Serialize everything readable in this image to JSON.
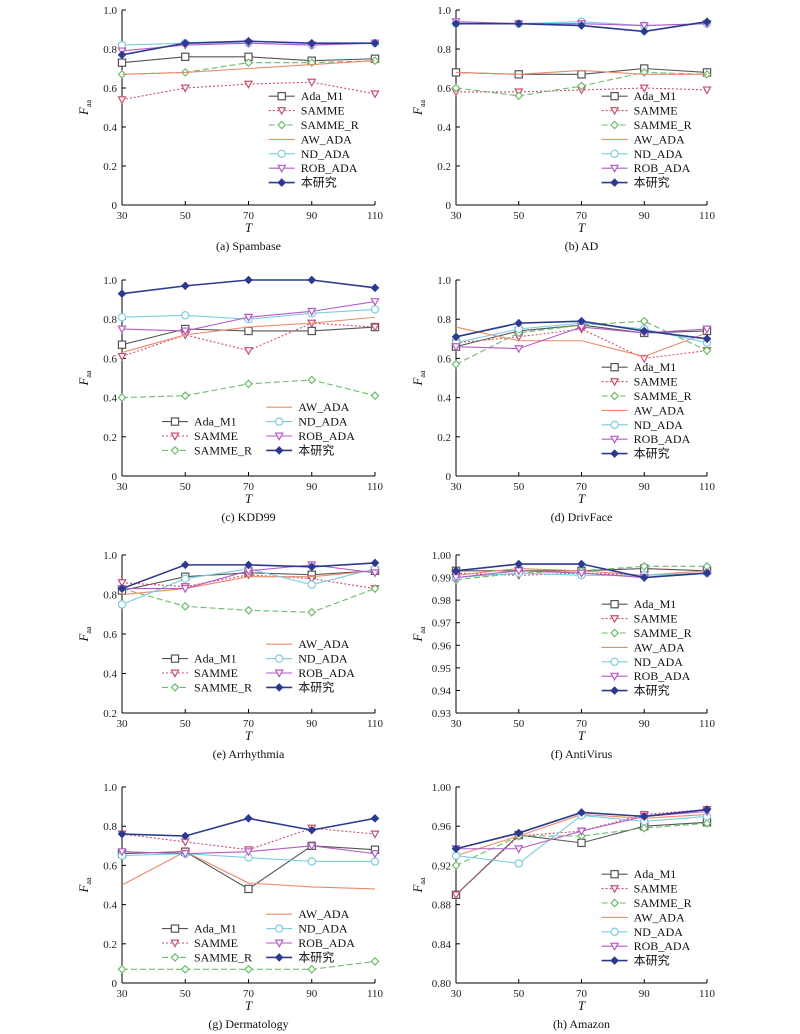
{
  "styles": {
    "Ada_M1": {
      "color": "#555555",
      "marker": "square",
      "dash": ""
    },
    "SAMME": {
      "color": "#c8506e",
      "marker": "tri-down",
      "dash": "2,2"
    },
    "SAMME_R": {
      "color": "#6dbb6d",
      "marker": "diamond",
      "dash": "6,3"
    },
    "AW_ADA": {
      "color": "#ee8a6a",
      "marker": "none",
      "dash": ""
    },
    "ND_ADA": {
      "color": "#7ecbe0",
      "marker": "circle",
      "dash": ""
    },
    "ROB_ADA": {
      "color": "#b55bc6",
      "marker": "tri-down",
      "dash": ""
    },
    "本研究": {
      "color": "#2b3a8f",
      "marker": "diamond-filled",
      "dash": ""
    }
  },
  "chart_data": [
    {
      "type": "line",
      "caption": "(a) Spambase",
      "legend": "right",
      "xlabel": "T",
      "ylabel": "F",
      "ylabel_sub": "aa",
      "x": [
        30,
        50,
        70,
        90,
        110
      ],
      "ylim": [
        0,
        1.0
      ],
      "yticks": [
        0,
        0.2,
        0.4,
        0.6,
        0.8,
        1.0
      ],
      "ytick_labels": [
        "0",
        "0.2",
        "0.4",
        "0.6",
        "0.8",
        "1.0"
      ],
      "series": [
        {
          "name": "Ada_M1",
          "values": [
            0.73,
            0.76,
            0.76,
            0.74,
            0.75
          ]
        },
        {
          "name": "SAMME",
          "values": [
            0.54,
            0.6,
            0.62,
            0.63,
            0.57
          ]
        },
        {
          "name": "SAMME_R",
          "values": [
            0.67,
            0.68,
            0.73,
            0.73,
            0.74
          ]
        },
        {
          "name": "AW_ADA",
          "values": [
            0.67,
            0.68,
            0.7,
            0.72,
            0.74
          ]
        },
        {
          "name": "ND_ADA",
          "values": [
            0.82,
            0.83,
            0.83,
            0.82,
            0.83
          ]
        },
        {
          "name": "ROB_ADA",
          "values": [
            0.79,
            0.82,
            0.83,
            0.82,
            0.83
          ]
        },
        {
          "name": "本研究",
          "values": [
            0.77,
            0.83,
            0.84,
            0.83,
            0.83
          ]
        }
      ]
    },
    {
      "type": "line",
      "caption": "(b) AD",
      "legend": "right",
      "xlabel": "T",
      "ylabel": "F",
      "ylabel_sub": "aa",
      "x": [
        30,
        50,
        70,
        90,
        110
      ],
      "ylim": [
        0,
        1.0
      ],
      "yticks": [
        0,
        0.2,
        0.4,
        0.6,
        0.8,
        1.0
      ],
      "ytick_labels": [
        "0",
        "0.2",
        "0.4",
        "0.6",
        "0.8",
        "1.0"
      ],
      "series": [
        {
          "name": "Ada_M1",
          "values": [
            0.68,
            0.67,
            0.67,
            0.7,
            0.68
          ]
        },
        {
          "name": "SAMME",
          "values": [
            0.58,
            0.58,
            0.59,
            0.6,
            0.59
          ]
        },
        {
          "name": "SAMME_R",
          "values": [
            0.6,
            0.56,
            0.61,
            0.68,
            0.67
          ]
        },
        {
          "name": "AW_ADA",
          "values": [
            0.68,
            0.67,
            0.69,
            0.67,
            0.67
          ]
        },
        {
          "name": "ND_ADA",
          "values": [
            0.93,
            0.93,
            0.94,
            0.92,
            0.93
          ]
        },
        {
          "name": "ROB_ADA",
          "values": [
            0.94,
            0.93,
            0.93,
            0.92,
            0.93
          ]
        },
        {
          "name": "本研究",
          "values": [
            0.93,
            0.93,
            0.92,
            0.89,
            0.94
          ]
        }
      ]
    },
    {
      "type": "line",
      "caption": "(c) KDD99",
      "legend": "bottom-left-two-col",
      "xlabel": "T",
      "ylabel": "F",
      "ylabel_sub": "aa",
      "x": [
        30,
        50,
        70,
        90,
        110
      ],
      "ylim": [
        0,
        1.0
      ],
      "yticks": [
        0,
        0.2,
        0.4,
        0.6,
        0.8,
        1.0
      ],
      "ytick_labels": [
        "0",
        "0.2",
        "0.4",
        "0.6",
        "0.8",
        "1.0"
      ],
      "series": [
        {
          "name": "Ada_M1",
          "values": [
            0.67,
            0.75,
            0.74,
            0.74,
            0.76
          ]
        },
        {
          "name": "SAMME",
          "values": [
            0.61,
            0.72,
            0.64,
            0.78,
            0.76
          ]
        },
        {
          "name": "SAMME_R",
          "values": [
            0.4,
            0.41,
            0.47,
            0.49,
            0.41
          ]
        },
        {
          "name": "AW_ADA",
          "values": [
            0.63,
            0.72,
            0.76,
            0.78,
            0.81
          ]
        },
        {
          "name": "ND_ADA",
          "values": [
            0.81,
            0.82,
            0.8,
            0.83,
            0.85
          ]
        },
        {
          "name": "ROB_ADA",
          "values": [
            0.75,
            0.74,
            0.81,
            0.84,
            0.89
          ]
        },
        {
          "name": "本研究",
          "values": [
            0.93,
            0.97,
            1.0,
            1.0,
            0.96
          ]
        }
      ]
    },
    {
      "type": "line",
      "caption": "(d) DrivFace",
      "legend": "right",
      "xlabel": "T",
      "ylabel": "F",
      "ylabel_sub": "aa",
      "x": [
        30,
        50,
        70,
        90,
        110
      ],
      "ylim": [
        0,
        1.0
      ],
      "yticks": [
        0,
        0.2,
        0.4,
        0.6,
        0.8,
        1.0
      ],
      "ytick_labels": [
        "0",
        "0.2",
        "0.4",
        "0.6",
        "0.8",
        "1.0"
      ],
      "series": [
        {
          "name": "Ada_M1",
          "values": [
            0.66,
            0.74,
            0.77,
            0.73,
            0.74
          ]
        },
        {
          "name": "SAMME",
          "values": [
            0.68,
            0.71,
            0.75,
            0.6,
            0.64
          ]
        },
        {
          "name": "SAMME_R",
          "values": [
            0.57,
            0.73,
            0.77,
            0.79,
            0.64
          ]
        },
        {
          "name": "AW_ADA",
          "values": [
            0.76,
            0.69,
            0.69,
            0.61,
            0.73
          ]
        },
        {
          "name": "ND_ADA",
          "values": [
            0.68,
            0.75,
            0.78,
            0.75,
            0.68
          ]
        },
        {
          "name": "ROB_ADA",
          "values": [
            0.66,
            0.65,
            0.76,
            0.73,
            0.75
          ]
        },
        {
          "name": "本研究",
          "values": [
            0.71,
            0.78,
            0.79,
            0.74,
            0.7
          ]
        }
      ]
    },
    {
      "type": "line",
      "caption": "(e) Arrhythmia",
      "legend": "bottom-left-two-col",
      "xlabel": "T",
      "ylabel": "F",
      "ylabel_sub": "aa",
      "x": [
        30,
        50,
        70,
        90,
        110
      ],
      "ylim": [
        0.2,
        1.0
      ],
      "yticks": [
        0.2,
        0.4,
        0.6,
        0.8,
        1.0
      ],
      "ytick_labels": [
        "0.2",
        "0.4",
        "0.6",
        "0.8",
        "1.0"
      ],
      "series": [
        {
          "name": "Ada_M1",
          "values": [
            0.82,
            0.89,
            0.91,
            0.9,
            0.92
          ]
        },
        {
          "name": "SAMME",
          "values": [
            0.86,
            0.84,
            0.9,
            0.88,
            0.83
          ]
        },
        {
          "name": "SAMME_R",
          "values": [
            0.83,
            0.74,
            0.72,
            0.71,
            0.83
          ]
        },
        {
          "name": "AW_ADA",
          "values": [
            0.8,
            0.83,
            0.89,
            0.89,
            0.92
          ]
        },
        {
          "name": "ND_ADA",
          "values": [
            0.75,
            0.88,
            0.93,
            0.85,
            0.93
          ]
        },
        {
          "name": "ROB_ADA",
          "values": [
            0.83,
            0.83,
            0.92,
            0.95,
            0.91
          ]
        },
        {
          "name": "本研究",
          "values": [
            0.83,
            0.95,
            0.95,
            0.94,
            0.96
          ]
        }
      ]
    },
    {
      "type": "line",
      "caption": "(f) AntiVirus",
      "legend": "right",
      "xlabel": "T",
      "ylabel": "F",
      "ylabel_sub": "aa",
      "x": [
        30,
        50,
        70,
        90,
        110
      ],
      "ylim": [
        0.93,
        1.0
      ],
      "yticks": [
        0.93,
        0.94,
        0.95,
        0.96,
        0.97,
        0.98,
        0.99,
        1.0
      ],
      "ytick_labels": [
        "0.93",
        "0.94",
        "0.95",
        "0.96",
        "0.97",
        "0.98",
        "0.99",
        "1.00"
      ],
      "series": [
        {
          "name": "Ada_M1",
          "values": [
            0.993,
            0.993,
            0.993,
            0.994,
            0.993
          ]
        },
        {
          "name": "SAMME",
          "values": [
            0.992,
            0.991,
            0.992,
            0.991,
            0.992
          ]
        },
        {
          "name": "SAMME_R",
          "values": [
            0.989,
            0.992,
            0.993,
            0.995,
            0.995
          ]
        },
        {
          "name": "AW_ADA",
          "values": [
            0.991,
            0.994,
            0.993,
            0.991,
            0.993
          ]
        },
        {
          "name": "ND_ADA",
          "values": [
            0.99,
            0.992,
            0.991,
            0.991,
            0.992
          ]
        },
        {
          "name": "ROB_ADA",
          "values": [
            0.99,
            0.993,
            0.992,
            0.99,
            0.992
          ]
        },
        {
          "name": "本研究",
          "values": [
            0.993,
            0.996,
            0.996,
            0.99,
            0.992
          ]
        }
      ]
    },
    {
      "type": "line",
      "caption": "(g) Dermatology",
      "legend": "bottom-left-two-col",
      "xlabel": "T",
      "ylabel": "F",
      "ylabel_sub": "aa",
      "x": [
        30,
        50,
        70,
        90,
        110
      ],
      "ylim": [
        0,
        1.0
      ],
      "yticks": [
        0,
        0.2,
        0.4,
        0.6,
        0.8,
        1.0
      ],
      "ytick_labels": [
        "0",
        "0.2",
        "0.4",
        "0.6",
        "0.8",
        "1.0"
      ],
      "series": [
        {
          "name": "Ada_M1",
          "values": [
            0.66,
            0.67,
            0.48,
            0.7,
            0.68
          ]
        },
        {
          "name": "SAMME",
          "values": [
            0.76,
            0.72,
            0.68,
            0.79,
            0.76
          ]
        },
        {
          "name": "SAMME_R",
          "values": [
            0.07,
            0.07,
            0.07,
            0.07,
            0.11
          ]
        },
        {
          "name": "AW_ADA",
          "values": [
            0.5,
            0.67,
            0.51,
            0.49,
            0.48
          ]
        },
        {
          "name": "ND_ADA",
          "values": [
            0.65,
            0.66,
            0.64,
            0.62,
            0.62
          ]
        },
        {
          "name": "ROB_ADA",
          "values": [
            0.67,
            0.66,
            0.67,
            0.7,
            0.66
          ]
        },
        {
          "name": "本研究",
          "values": [
            0.76,
            0.75,
            0.84,
            0.78,
            0.84
          ]
        }
      ]
    },
    {
      "type": "line",
      "caption": "(h) Amazon",
      "legend": "right",
      "xlabel": "T",
      "ylabel": "F",
      "ylabel_sub": "aa",
      "x": [
        30,
        50,
        70,
        90,
        110
      ],
      "ylim": [
        0.8,
        1.0
      ],
      "yticks": [
        0.8,
        0.84,
        0.88,
        0.92,
        0.96,
        1.0
      ],
      "ytick_labels": [
        "0.80",
        "0.84",
        "0.88",
        "0.92",
        "0.96",
        "1.00"
      ],
      "series": [
        {
          "name": "Ada_M1",
          "values": [
            0.89,
            0.951,
            0.943,
            0.96,
            0.964
          ]
        },
        {
          "name": "SAMME",
          "values": [
            0.89,
            0.95,
            0.955,
            0.972,
            0.977
          ]
        },
        {
          "name": "SAMME_R",
          "values": [
            0.92,
            0.95,
            0.95,
            0.958,
            0.963
          ]
        },
        {
          "name": "AW_ADA",
          "values": [
            0.93,
            0.95,
            0.972,
            0.968,
            0.972
          ]
        },
        {
          "name": "ND_ADA",
          "values": [
            0.93,
            0.922,
            0.971,
            0.965,
            0.97
          ]
        },
        {
          "name": "ROB_ADA",
          "values": [
            0.937,
            0.937,
            0.955,
            0.97,
            0.975
          ]
        },
        {
          "name": "本研究",
          "values": [
            0.937,
            0.953,
            0.974,
            0.97,
            0.977
          ]
        }
      ]
    }
  ]
}
